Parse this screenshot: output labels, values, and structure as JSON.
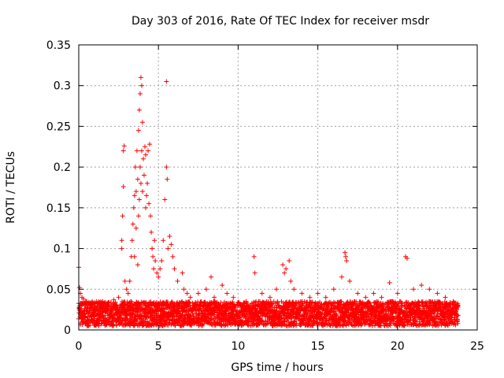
{
  "chart_data": {
    "type": "scatter",
    "title": "Day 303 of 2016, Rate Of TEC Index for receiver msdr",
    "xlabel": "GPS time / hours",
    "ylabel": "ROTI / TECUs",
    "xlim": [
      0,
      25
    ],
    "ylim": [
      0,
      0.35
    ],
    "x_ticks": [
      0,
      5,
      10,
      15,
      20,
      25
    ],
    "x_tick_labels": [
      "0",
      "5",
      "10",
      "15",
      "20",
      "25"
    ],
    "y_ticks": [
      0,
      0.05,
      0.1,
      0.15,
      0.2,
      0.25,
      0.3,
      0.35
    ],
    "y_tick_labels": [
      "0",
      "0.05",
      "0.1",
      "0.15",
      "0.2",
      "0.25",
      "0.3",
      "0.35"
    ],
    "grid": true,
    "marker": "+",
    "color": "#ff0000",
    "series": [
      {
        "name": "ROTI",
        "background_band": {
          "x_start": 0,
          "x_end": 23.8,
          "y_min": 0.005,
          "y_max": 0.035
        },
        "points": [
          [
            0.0,
            0.077
          ],
          [
            0.05,
            0.052
          ],
          [
            0.1,
            0.045
          ],
          [
            0.2,
            0.04
          ],
          [
            0.3,
            0.038
          ],
          [
            0.5,
            0.035
          ],
          [
            0.8,
            0.03
          ],
          [
            1.2,
            0.032
          ],
          [
            1.5,
            0.035
          ],
          [
            1.8,
            0.03
          ],
          [
            2.2,
            0.037
          ],
          [
            2.5,
            0.04
          ],
          [
            2.7,
            0.11
          ],
          [
            2.7,
            0.1
          ],
          [
            2.75,
            0.14
          ],
          [
            2.8,
            0.176
          ],
          [
            2.8,
            0.22
          ],
          [
            2.85,
            0.226
          ],
          [
            2.9,
            0.06
          ],
          [
            3.0,
            0.05
          ],
          [
            3.1,
            0.045
          ],
          [
            3.2,
            0.06
          ],
          [
            3.3,
            0.09
          ],
          [
            3.35,
            0.11
          ],
          [
            3.4,
            0.13
          ],
          [
            3.45,
            0.15
          ],
          [
            3.5,
            0.165
          ],
          [
            3.5,
            0.09
          ],
          [
            3.55,
            0.2
          ],
          [
            3.6,
            0.17
          ],
          [
            3.6,
            0.125
          ],
          [
            3.65,
            0.22
          ],
          [
            3.7,
            0.08
          ],
          [
            3.7,
            0.185
          ],
          [
            3.75,
            0.245
          ],
          [
            3.75,
            0.14
          ],
          [
            3.8,
            0.27
          ],
          [
            3.8,
            0.16
          ],
          [
            3.85,
            0.29
          ],
          [
            3.85,
            0.2
          ],
          [
            3.9,
            0.31
          ],
          [
            3.9,
            0.18
          ],
          [
            3.95,
            0.3
          ],
          [
            3.95,
            0.22
          ],
          [
            4.0,
            0.255
          ],
          [
            4.0,
            0.17
          ],
          [
            4.05,
            0.21
          ],
          [
            4.1,
            0.19
          ],
          [
            4.15,
            0.225
          ],
          [
            4.2,
            0.215
          ],
          [
            4.2,
            0.15
          ],
          [
            4.25,
            0.165
          ],
          [
            4.3,
            0.18
          ],
          [
            4.35,
            0.22
          ],
          [
            4.4,
            0.155
          ],
          [
            4.45,
            0.228
          ],
          [
            4.5,
            0.14
          ],
          [
            4.55,
            0.12
          ],
          [
            4.6,
            0.1
          ],
          [
            4.65,
            0.09
          ],
          [
            4.7,
            0.075
          ],
          [
            4.75,
            0.11
          ],
          [
            4.8,
            0.085
          ],
          [
            4.9,
            0.07
          ],
          [
            5.0,
            0.065
          ],
          [
            5.1,
            0.075
          ],
          [
            5.2,
            0.085
          ],
          [
            5.3,
            0.11
          ],
          [
            5.4,
            0.16
          ],
          [
            5.5,
            0.305
          ],
          [
            5.5,
            0.2
          ],
          [
            5.55,
            0.185
          ],
          [
            5.6,
            0.1
          ],
          [
            5.7,
            0.115
          ],
          [
            5.8,
            0.105
          ],
          [
            5.9,
            0.09
          ],
          [
            6.0,
            0.075
          ],
          [
            6.2,
            0.06
          ],
          [
            6.5,
            0.07
          ],
          [
            6.6,
            0.05
          ],
          [
            6.8,
            0.045
          ],
          [
            7.0,
            0.04
          ],
          [
            7.5,
            0.045
          ],
          [
            8.0,
            0.05
          ],
          [
            8.3,
            0.065
          ],
          [
            8.5,
            0.04
          ],
          [
            9.0,
            0.055
          ],
          [
            9.3,
            0.045
          ],
          [
            9.7,
            0.04
          ],
          [
            10.0,
            0.03
          ],
          [
            10.5,
            0.035
          ],
          [
            11.0,
            0.09
          ],
          [
            11.05,
            0.07
          ],
          [
            11.5,
            0.045
          ],
          [
            12.0,
            0.04
          ],
          [
            12.4,
            0.05
          ],
          [
            12.8,
            0.08
          ],
          [
            12.9,
            0.07
          ],
          [
            13.0,
            0.075
          ],
          [
            13.2,
            0.085
          ],
          [
            13.3,
            0.06
          ],
          [
            13.5,
            0.05
          ],
          [
            14.0,
            0.045
          ],
          [
            14.5,
            0.04
          ],
          [
            15.0,
            0.045
          ],
          [
            15.5,
            0.04
          ],
          [
            16.0,
            0.05
          ],
          [
            16.5,
            0.065
          ],
          [
            16.7,
            0.095
          ],
          [
            16.75,
            0.09
          ],
          [
            16.8,
            0.085
          ],
          [
            17.0,
            0.06
          ],
          [
            17.5,
            0.045
          ],
          [
            18.0,
            0.04
          ],
          [
            18.5,
            0.045
          ],
          [
            19.0,
            0.04
          ],
          [
            19.5,
            0.058
          ],
          [
            20.0,
            0.045
          ],
          [
            20.5,
            0.09
          ],
          [
            20.6,
            0.088
          ],
          [
            21.0,
            0.05
          ],
          [
            21.5,
            0.055
          ],
          [
            22.0,
            0.05
          ],
          [
            22.5,
            0.045
          ],
          [
            23.0,
            0.04
          ],
          [
            23.5,
            0.035
          ],
          [
            23.8,
            0.03
          ]
        ]
      }
    ]
  }
}
